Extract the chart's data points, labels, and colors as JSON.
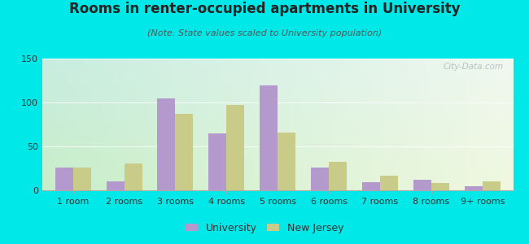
{
  "title": "Rooms in renter-occupied apartments in University",
  "subtitle": "(Note: State values scaled to University population)",
  "categories": [
    "1 room",
    "2 rooms",
    "3 rooms",
    "4 rooms",
    "5 rooms",
    "6 rooms",
    "7 rooms",
    "8 rooms",
    "9+ rooms"
  ],
  "university_values": [
    26,
    10,
    105,
    65,
    119,
    26,
    9,
    12,
    5
  ],
  "nj_values": [
    26,
    31,
    87,
    97,
    66,
    32,
    17,
    8,
    10
  ],
  "university_color": "#b399cc",
  "nj_color": "#c8cc88",
  "bg_outer": "#00e8e8",
  "bg_plot_topleft": "#c8ede0",
  "bg_plot_topright": "#e8f4ee",
  "bg_plot_bottomleft": "#d8f0d0",
  "bg_plot_bottomright": "#f0f8ec",
  "ylim": [
    0,
    150
  ],
  "yticks": [
    0,
    50,
    100,
    150
  ],
  "legend_labels": [
    "University",
    "New Jersey"
  ],
  "bar_width": 0.35,
  "title_fontsize": 12,
  "subtitle_fontsize": 8,
  "tick_fontsize": 8,
  "legend_fontsize": 9,
  "watermark_text": "City-Data.com"
}
